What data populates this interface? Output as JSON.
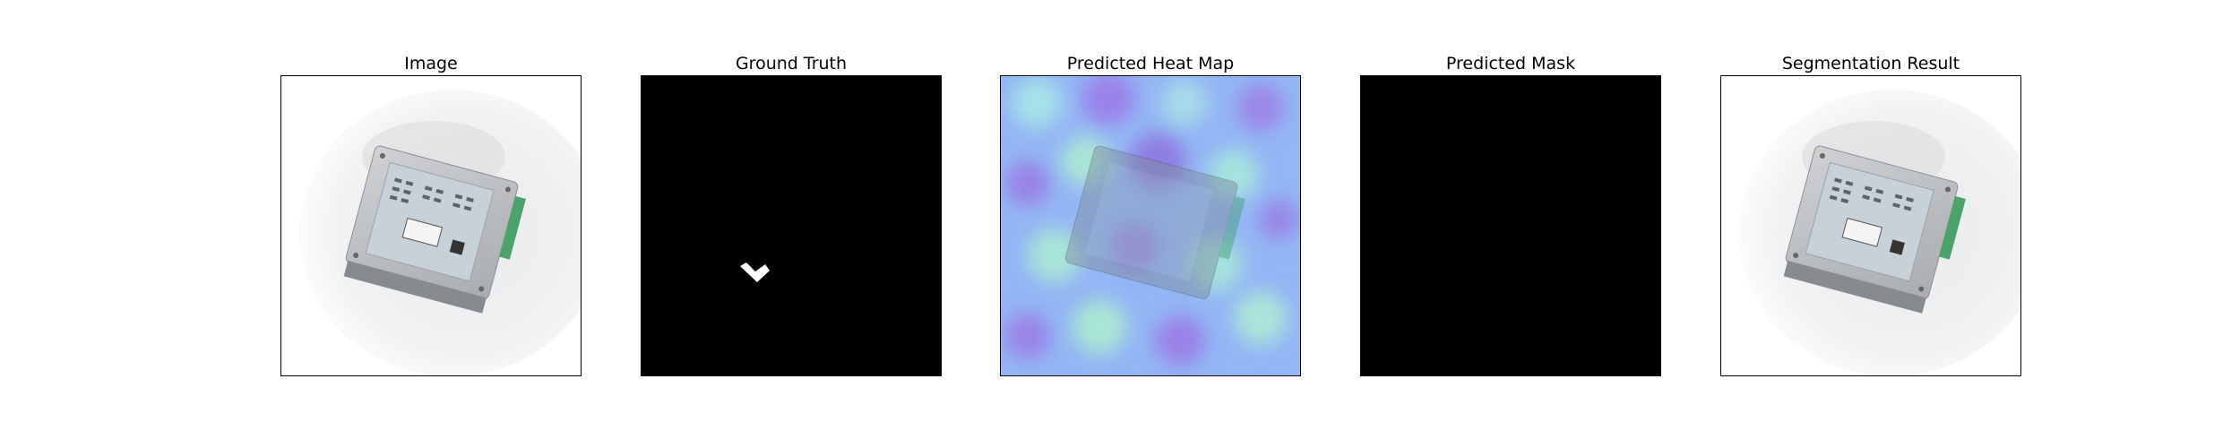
{
  "figure": {
    "panels": [
      {
        "title": "Image",
        "kind": "photo"
      },
      {
        "title": "Ground Truth",
        "kind": "mask"
      },
      {
        "title": "Predicted Heat Map",
        "kind": "heatmap"
      },
      {
        "title": "Predicted Mask",
        "kind": "empty-mask"
      },
      {
        "title": "Segmentation Result",
        "kind": "photo"
      }
    ]
  },
  "colors": {
    "mask_background": "#000000",
    "mask_foreground": "#ffffff",
    "heatmap_base": "#8fb4f2",
    "heatmap_cool": "#9b7fe6",
    "heatmap_warm": "#a6e6d0",
    "device_body": "#b9bcc0",
    "device_label": "#c9d2dc",
    "terminal_green": "#49a36a"
  }
}
